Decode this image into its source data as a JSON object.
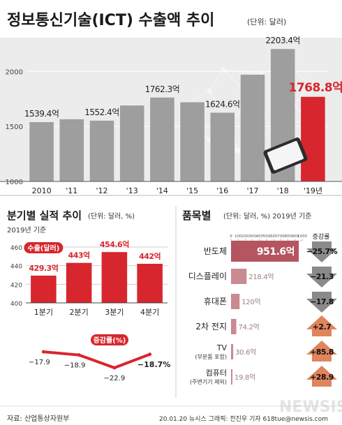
{
  "title": "정보통신기술(ICT) 수출액 추이",
  "title_unit": "(단위: 달러)",
  "colors": {
    "gray": "#9e9e9e",
    "red": "#d7262e",
    "pink": "#b5555f",
    "pink_light": "#c98a92",
    "arrow_up": "#e0845c",
    "arrow_down": "#8a8a8a",
    "dark_text": "#222222"
  },
  "chart_data": [
    {
      "type": "bar",
      "title": "정보통신기술(ICT) 수출액 추이",
      "unit": "(단위: 달러)",
      "categories": [
        "2010",
        "'11",
        "'12",
        "'13",
        "'14",
        "'15",
        "'16",
        "'17",
        "'18",
        "'19년"
      ],
      "values": [
        1539.4,
        1565,
        1552.4,
        1690,
        1762.3,
        1720,
        1624.6,
        1970,
        2203.4,
        1768.8
      ],
      "value_labels": [
        "1539.4억",
        "",
        "1552.4억",
        "",
        "1762.3억",
        "",
        "1624.6억",
        "",
        "2203.4억",
        "1768.8억"
      ],
      "yticks": [
        1000,
        1500,
        2000
      ],
      "ylim": [
        1000,
        2300
      ],
      "highlight_index": 9
    },
    {
      "type": "bar",
      "title": "분기별 실적 추이",
      "unit": "(단위: 달러, %)",
      "subtitle": "2019년 기준",
      "categories": [
        "1분기",
        "2분기",
        "3분기",
        "4분기"
      ],
      "values": [
        429.3,
        443,
        454.6,
        442
      ],
      "value_labels": [
        "429.3억",
        "443억",
        "454.6억",
        "442억"
      ],
      "badge": "수출(달러)",
      "yticks": [
        400,
        420,
        440,
        460
      ],
      "ylim": [
        400,
        460
      ],
      "growth_badge": "증감률(%)",
      "growth": [
        -17.9,
        -18.9,
        -22.9,
        -18.7
      ],
      "growth_labels": [
        "−17.9",
        "−18.9",
        "−22.9",
        "−18.7%"
      ]
    },
    {
      "type": "bar",
      "title": "품목별",
      "unit": "(단위: 달러, %) 2019년 기준",
      "xticks": [
        0,
        100,
        200,
        300,
        400,
        500,
        600,
        700,
        800,
        900,
        1000
      ],
      "xlim": [
        0,
        1000
      ],
      "change_header": "증감률",
      "items": [
        {
          "name": "반도체",
          "sub": "",
          "value": 951.6,
          "label": "951.6억",
          "change": "−25.7%",
          "dir": "down"
        },
        {
          "name": "디스플레이",
          "sub": "",
          "value": 218.4,
          "label": "218.4억",
          "change": "−21.3",
          "dir": "down"
        },
        {
          "name": "휴대폰",
          "sub": "",
          "value": 120,
          "label": "120억",
          "change": "−17.8",
          "dir": "down"
        },
        {
          "name": "2차 전지",
          "sub": "",
          "value": 74.2,
          "label": "74.2억",
          "change": "+2.7",
          "dir": "up"
        },
        {
          "name": "TV",
          "sub": "(부분품 포함)",
          "value": 30.6,
          "label": "30.6억",
          "change": "+85.8",
          "dir": "up"
        },
        {
          "name": "컴퓨터",
          "sub": "(주변기기 제외)",
          "value": 19.8,
          "label": "19.8억",
          "change": "+28.9",
          "dir": "up"
        }
      ]
    }
  ],
  "footer": {
    "source": "자료: 산업통상자원부",
    "credit": "20.01.20 뉴시스 그래픽: 전진우 기자 618tue@newsis.com"
  },
  "watermark": "NEWSIS"
}
